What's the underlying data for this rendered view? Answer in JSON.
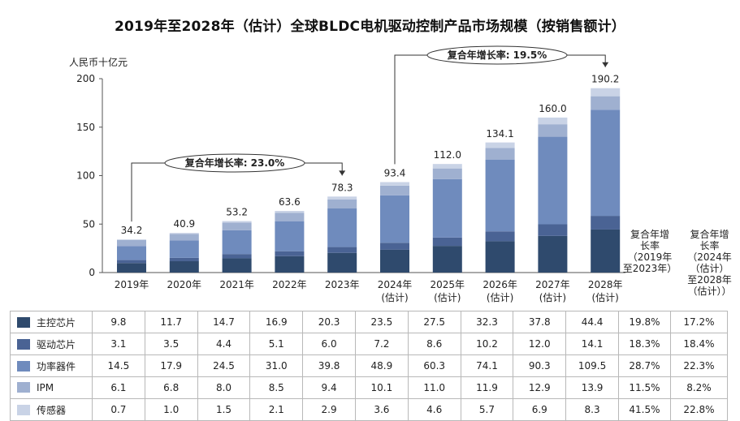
{
  "title": "2019年至2028年（估计）全球BLDC电机驱动控制产品市场规模（按销售额计）",
  "y_unit": "人民币十亿元",
  "cagr_headers": [
    "复合年增长率（2019年至2023年）",
    "复合年增长率（2024年（估计）至2028年（估计））"
  ],
  "cagr_header_lines": [
    [
      "复合年增",
      "长率",
      "（2019年",
      "至2023年）"
    ],
    [
      "复合年增",
      "长率",
      "（2024年",
      "（估计）",
      "至2028年",
      "（估计））"
    ]
  ],
  "callouts": [
    {
      "text": "复合年增长率: 23.0%"
    },
    {
      "text": "复合年增长率: 19.5%"
    }
  ],
  "chart_data": {
    "type": "bar",
    "stacked": true,
    "categories": [
      "2019年",
      "2020年",
      "2021年",
      "2022年",
      "2023年",
      "2024年(估计)",
      "2025年(估计)",
      "2026年(估计)",
      "2027年(估计)",
      "2028年(估计)"
    ],
    "category_lines": [
      [
        "2019年"
      ],
      [
        "2020年"
      ],
      [
        "2021年"
      ],
      [
        "2022年"
      ],
      [
        "2023年"
      ],
      [
        "2024年",
        "(估计)"
      ],
      [
        "2025年",
        "(估计)"
      ],
      [
        "2026年",
        "(估计)"
      ],
      [
        "2027年",
        "(估计)"
      ],
      [
        "2028年",
        "(估计)"
      ]
    ],
    "totals": [
      34.2,
      40.9,
      53.2,
      63.6,
      78.3,
      93.4,
      112.0,
      134.1,
      160.0,
      190.2
    ],
    "totals_text": [
      "34.2",
      "40.9",
      "53.2",
      "63.6",
      "78.3",
      "93.4",
      "112.0",
      "134.1",
      "160.0",
      "190.2"
    ],
    "ylim": [
      0,
      200
    ],
    "yticks": [
      0,
      50,
      100,
      150,
      200
    ],
    "series": [
      {
        "name": "主控芯片",
        "color": "#2f4a6d",
        "values": [
          9.8,
          11.7,
          14.7,
          16.9,
          20.3,
          23.5,
          27.5,
          32.3,
          37.8,
          44.4
        ],
        "text": [
          "9.8",
          "11.7",
          "14.7",
          "16.9",
          "20.3",
          "23.5",
          "27.5",
          "32.3",
          "37.8",
          "44.4"
        ],
        "cagr": [
          "19.8%",
          "17.2%"
        ]
      },
      {
        "name": "驱动芯片",
        "color": "#4a6394",
        "values": [
          3.1,
          3.5,
          4.4,
          5.1,
          6.0,
          7.2,
          8.6,
          10.2,
          12.0,
          14.1
        ],
        "text": [
          "3.1",
          "3.5",
          "4.4",
          "5.1",
          "6.0",
          "7.2",
          "8.6",
          "10.2",
          "12.0",
          "14.1"
        ],
        "cagr": [
          "18.3%",
          "18.4%"
        ]
      },
      {
        "name": "功率器件",
        "color": "#6f8bbd",
        "values": [
          14.5,
          17.9,
          24.5,
          31.0,
          39.8,
          48.9,
          60.3,
          74.1,
          90.3,
          109.5
        ],
        "text": [
          "14.5",
          "17.9",
          "24.5",
          "31.0",
          "39.8",
          "48.9",
          "60.3",
          "74.1",
          "90.3",
          "109.5"
        ],
        "cagr": [
          "28.7%",
          "22.3%"
        ]
      },
      {
        "name": "IPM",
        "color": "#9fb0d0",
        "values": [
          6.1,
          6.8,
          8.0,
          8.5,
          9.4,
          10.1,
          11.0,
          11.9,
          12.9,
          13.9
        ],
        "text": [
          "6.1",
          "6.8",
          "8.0",
          "8.5",
          "9.4",
          "10.1",
          "11.0",
          "11.9",
          "12.9",
          "13.9"
        ],
        "cagr": [
          "11.5%",
          "8.2%"
        ]
      },
      {
        "name": "传感器",
        "color": "#c9d3e6",
        "values": [
          0.7,
          1.0,
          1.5,
          2.1,
          2.9,
          3.6,
          4.6,
          5.7,
          6.9,
          8.3
        ],
        "text": [
          "0.7",
          "1.0",
          "1.5",
          "2.1",
          "2.9",
          "3.6",
          "4.6",
          "5.7",
          "6.9",
          "8.3"
        ],
        "cagr": [
          "41.5%",
          "22.8%"
        ]
      }
    ],
    "grid": false,
    "legend": "table"
  }
}
